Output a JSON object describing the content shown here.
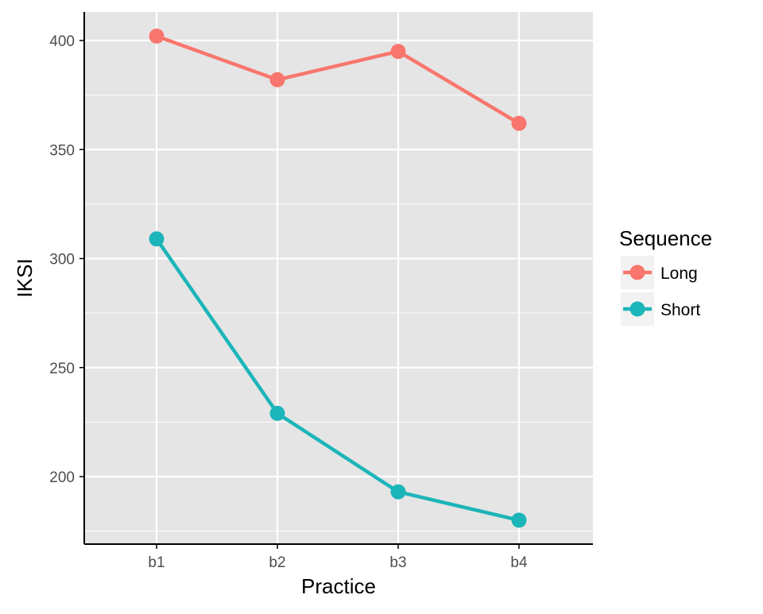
{
  "chart_data": {
    "type": "line",
    "title": "",
    "xlabel": "Practice",
    "ylabel": "IKSI",
    "categories": [
      "b1",
      "b2",
      "b3",
      "b4"
    ],
    "yticks": [
      200,
      250,
      300,
      350,
      400
    ],
    "ylim": [
      175,
      413
    ],
    "grid": true,
    "legend": {
      "title": "Sequence",
      "placement": "right"
    },
    "series": [
      {
        "name": "Long",
        "color": "#F8766D",
        "values": [
          402,
          382,
          395,
          362
        ]
      },
      {
        "name": "Short",
        "color": "#1CB5B9",
        "values": [
          309,
          229,
          193,
          180
        ]
      }
    ]
  },
  "colors": {
    "panel_background": "#E5E5E5",
    "grid_line": "#FFFFFF",
    "axis_line": "#000000",
    "tick_label": "#4D4D4D",
    "axis_title": "#000000"
  }
}
